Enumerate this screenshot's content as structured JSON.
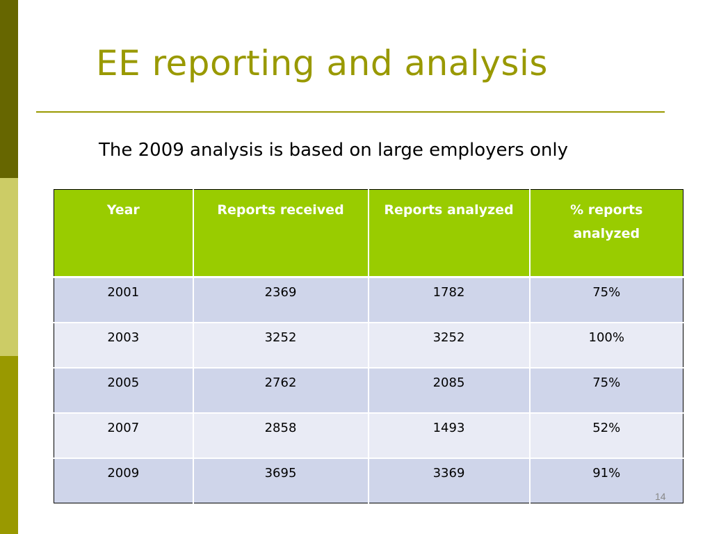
{
  "slide": {
    "title": "EE reporting and analysis",
    "subtitle": "The 2009 analysis is based on large employers only",
    "page_number": "14"
  },
  "colors": {
    "accent": "#999900",
    "side_dark": "#666600",
    "side_light": "#CCCC66",
    "header_green": "#99CC00",
    "row_dark": "#CFD5EA",
    "row_light": "#E9EBF5"
  },
  "table": {
    "headers": [
      "Year",
      "Reports received",
      "Reports analyzed",
      "% reports analyzed"
    ],
    "rows": [
      [
        "2001",
        "2369",
        "1782",
        "75%"
      ],
      [
        "2003",
        "3252",
        "3252",
        "100%"
      ],
      [
        "2005",
        "2762",
        "2085",
        "75%"
      ],
      [
        "2007",
        "2858",
        "1493",
        "52%"
      ],
      [
        "2009",
        "3695",
        "3369",
        "91%"
      ]
    ]
  }
}
